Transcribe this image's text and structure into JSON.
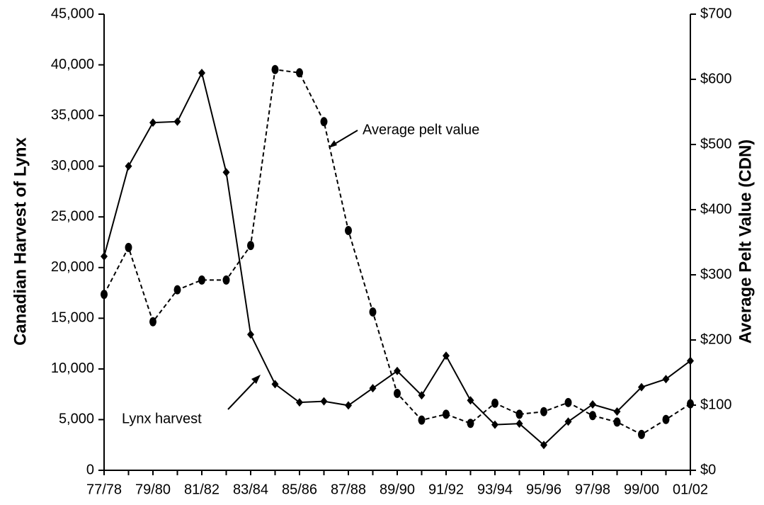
{
  "chart_data": {
    "type": "line",
    "categories": [
      "77/78",
      null,
      "79/80",
      null,
      "81/82",
      null,
      "83/84",
      null,
      "85/86",
      null,
      "87/88",
      null,
      "89/90",
      null,
      "91/92",
      null,
      "93/94",
      null,
      "95/96",
      null,
      "97/98",
      null,
      "99/00",
      null,
      "01/02"
    ],
    "series": [
      {
        "name": "Lynx harvest",
        "color": "#000000",
        "dash": false,
        "marker": "diamond",
        "values": [
          21100,
          30000,
          34300,
          34400,
          39200,
          29400,
          13400,
          8500,
          6700,
          6800,
          6400,
          8100,
          9800,
          7400,
          11300,
          6900,
          4500,
          4600,
          2500,
          4800,
          6500,
          5800,
          8200,
          9000,
          10800
        ]
      },
      {
        "name": "Average pelt value",
        "color": "#000000",
        "dash": true,
        "marker": "circle",
        "axis": "y2",
        "values": [
          270,
          342,
          228,
          277,
          292,
          292,
          345,
          615,
          610,
          535,
          368,
          243,
          118,
          77,
          86,
          72,
          103,
          86,
          90,
          104,
          84,
          74,
          55,
          78,
          102
        ]
      }
    ],
    "ylabel": "Canadian Harvest of Lynx",
    "y2label": "Average Pelt Value (CDN)",
    "ylim": [
      0,
      45000
    ],
    "yticks": [
      0,
      {
        "value": 5000,
        "label": "5,000"
      },
      {
        "value": 10000,
        "label": "10,000"
      },
      {
        "value": 15000,
        "label": "15,000"
      },
      {
        "value": 20000,
        "label": "20,000"
      },
      {
        "value": 25000,
        "label": "25,000"
      },
      {
        "value": 30000,
        "label": "30,000"
      },
      {
        "value": 35000,
        "label": "35,000"
      },
      {
        "value": 40000,
        "label": "40,000"
      },
      {
        "value": 45000,
        "label": "45,000"
      }
    ],
    "y2lim": [
      0,
      700
    ],
    "y2ticks": [
      {
        "value": 0,
        "label": "$0"
      },
      {
        "value": 100,
        "label": "$100"
      },
      {
        "value": 200,
        "label": "$200"
      },
      {
        "value": 300,
        "label": "$300"
      },
      {
        "value": 400,
        "label": "$400"
      },
      {
        "value": 500,
        "label": "$500"
      },
      {
        "value": 600,
        "label": "$600"
      },
      {
        "value": 700,
        "label": "$700"
      }
    ],
    "grid": false
  }
}
